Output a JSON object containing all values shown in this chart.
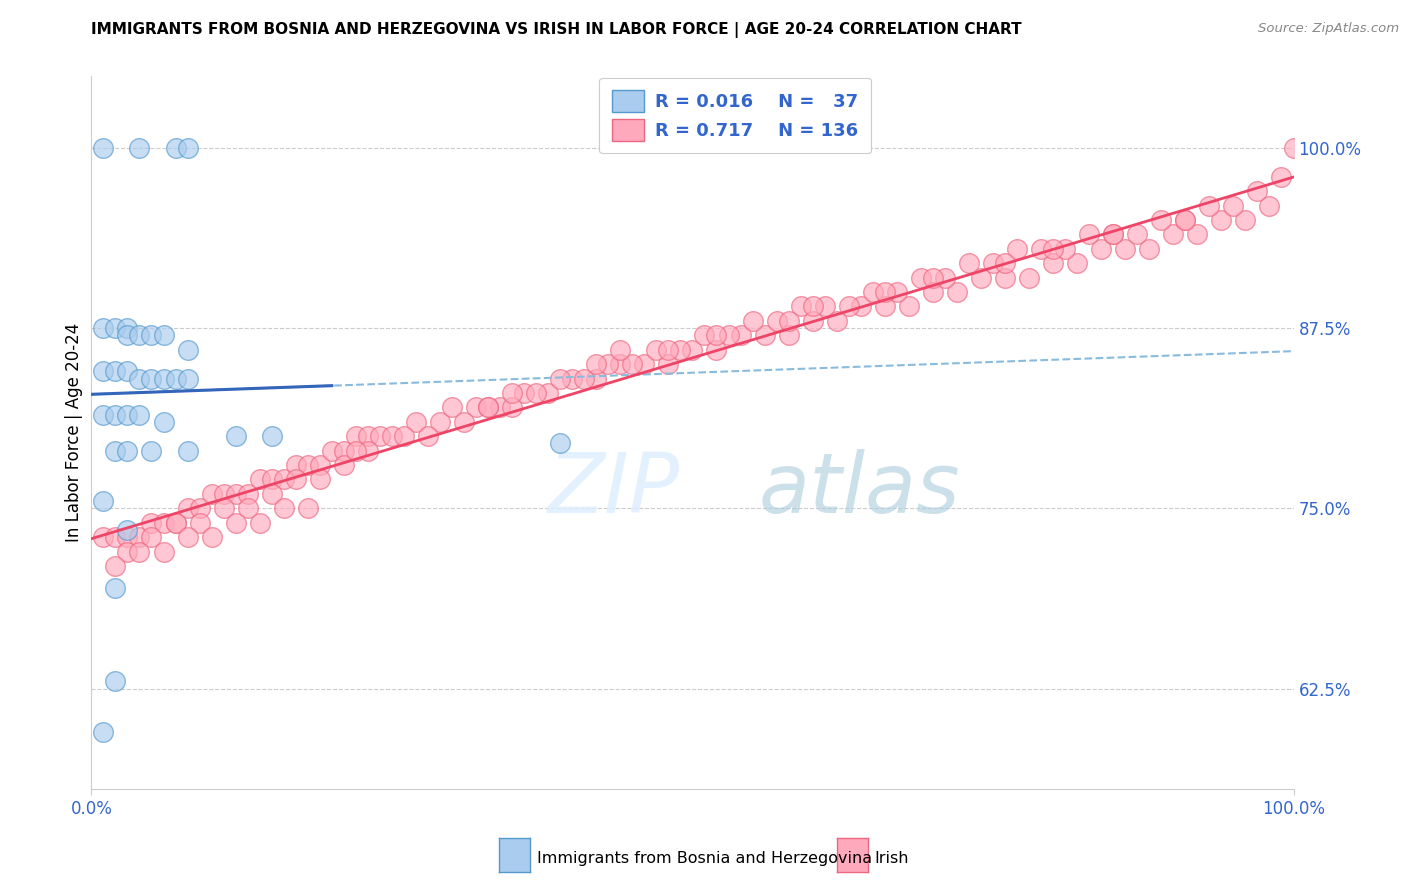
{
  "title": "IMMIGRANTS FROM BOSNIA AND HERZEGOVINA VS IRISH IN LABOR FORCE | AGE 20-24 CORRELATION CHART",
  "source": "Source: ZipAtlas.com",
  "ylabel": "In Labor Force | Age 20-24",
  "right_yticks": [
    0.625,
    0.75,
    0.875,
    1.0
  ],
  "right_yticklabels": [
    "62.5%",
    "75.0%",
    "87.5%",
    "100.0%"
  ],
  "xmin": 0.0,
  "xmax": 1.0,
  "ymin": 0.555,
  "ymax": 1.05,
  "blue_face": "#AACCEE",
  "blue_edge": "#5599CC",
  "pink_face": "#FFAABC",
  "pink_edge": "#EE6680",
  "trend_blue_solid": "#3366BB",
  "trend_blue_dash": "#88BBDD",
  "trend_pink": "#EE4466",
  "legend_text_color": "#3366CC",
  "watermark": "ZIPatlas",
  "axis_text_color": "#3366CC",
  "blue_x": [
    0.01,
    0.04,
    0.07,
    0.08,
    0.01,
    0.02,
    0.03,
    0.03,
    0.04,
    0.05,
    0.06,
    0.08,
    0.01,
    0.02,
    0.03,
    0.04,
    0.05,
    0.06,
    0.07,
    0.08,
    0.01,
    0.02,
    0.03,
    0.04,
    0.06,
    0.02,
    0.03,
    0.05,
    0.08,
    0.12,
    0.15,
    0.01,
    0.03,
    0.02,
    0.39,
    0.02,
    0.01
  ],
  "blue_y": [
    1.0,
    1.0,
    1.0,
    1.0,
    0.875,
    0.875,
    0.875,
    0.87,
    0.87,
    0.87,
    0.87,
    0.86,
    0.845,
    0.845,
    0.845,
    0.84,
    0.84,
    0.84,
    0.84,
    0.84,
    0.815,
    0.815,
    0.815,
    0.815,
    0.81,
    0.79,
    0.79,
    0.79,
    0.79,
    0.8,
    0.8,
    0.755,
    0.735,
    0.63,
    0.795,
    0.695,
    0.595
  ],
  "pink_x": [
    0.01,
    0.02,
    0.03,
    0.04,
    0.05,
    0.06,
    0.07,
    0.08,
    0.09,
    0.1,
    0.11,
    0.12,
    0.13,
    0.14,
    0.15,
    0.16,
    0.17,
    0.18,
    0.19,
    0.2,
    0.21,
    0.22,
    0.23,
    0.24,
    0.25,
    0.27,
    0.29,
    0.3,
    0.32,
    0.34,
    0.36,
    0.38,
    0.4,
    0.42,
    0.44,
    0.46,
    0.48,
    0.5,
    0.52,
    0.54,
    0.56,
    0.58,
    0.6,
    0.62,
    0.64,
    0.66,
    0.68,
    0.7,
    0.72,
    0.74,
    0.76,
    0.78,
    0.8,
    0.82,
    0.84,
    0.86,
    0.88,
    0.9,
    0.92,
    0.94,
    0.96,
    0.98,
    1.0,
    0.03,
    0.05,
    0.07,
    0.09,
    0.11,
    0.13,
    0.15,
    0.17,
    0.19,
    0.21,
    0.23,
    0.26,
    0.28,
    0.31,
    0.33,
    0.35,
    0.37,
    0.39,
    0.41,
    0.43,
    0.45,
    0.47,
    0.49,
    0.51,
    0.53,
    0.55,
    0.57,
    0.59,
    0.61,
    0.63,
    0.65,
    0.67,
    0.69,
    0.71,
    0.73,
    0.75,
    0.77,
    0.79,
    0.81,
    0.83,
    0.85,
    0.87,
    0.89,
    0.91,
    0.93,
    0.95,
    0.97,
    0.99,
    0.02,
    0.04,
    0.06,
    0.08,
    0.1,
    0.12,
    0.14,
    0.16,
    0.18,
    0.35,
    0.52,
    0.66,
    0.8,
    0.42,
    0.7,
    0.58,
    0.91,
    0.48,
    0.76,
    0.33,
    0.6,
    0.85,
    0.22,
    0.44
  ],
  "pink_y": [
    0.73,
    0.73,
    0.73,
    0.73,
    0.74,
    0.74,
    0.74,
    0.75,
    0.75,
    0.76,
    0.76,
    0.76,
    0.76,
    0.77,
    0.77,
    0.77,
    0.78,
    0.78,
    0.78,
    0.79,
    0.79,
    0.8,
    0.8,
    0.8,
    0.8,
    0.81,
    0.81,
    0.82,
    0.82,
    0.82,
    0.83,
    0.83,
    0.84,
    0.84,
    0.85,
    0.85,
    0.85,
    0.86,
    0.86,
    0.87,
    0.87,
    0.87,
    0.88,
    0.88,
    0.89,
    0.89,
    0.89,
    0.9,
    0.9,
    0.91,
    0.91,
    0.91,
    0.92,
    0.92,
    0.93,
    0.93,
    0.93,
    0.94,
    0.94,
    0.95,
    0.95,
    0.96,
    1.0,
    0.72,
    0.73,
    0.74,
    0.74,
    0.75,
    0.75,
    0.76,
    0.77,
    0.77,
    0.78,
    0.79,
    0.8,
    0.8,
    0.81,
    0.82,
    0.82,
    0.83,
    0.84,
    0.84,
    0.85,
    0.85,
    0.86,
    0.86,
    0.87,
    0.87,
    0.88,
    0.88,
    0.89,
    0.89,
    0.89,
    0.9,
    0.9,
    0.91,
    0.91,
    0.92,
    0.92,
    0.93,
    0.93,
    0.93,
    0.94,
    0.94,
    0.94,
    0.95,
    0.95,
    0.96,
    0.96,
    0.97,
    0.98,
    0.71,
    0.72,
    0.72,
    0.73,
    0.73,
    0.74,
    0.74,
    0.75,
    0.75,
    0.83,
    0.87,
    0.9,
    0.93,
    0.85,
    0.91,
    0.88,
    0.95,
    0.86,
    0.92,
    0.82,
    0.89,
    0.94,
    0.79,
    0.86
  ]
}
